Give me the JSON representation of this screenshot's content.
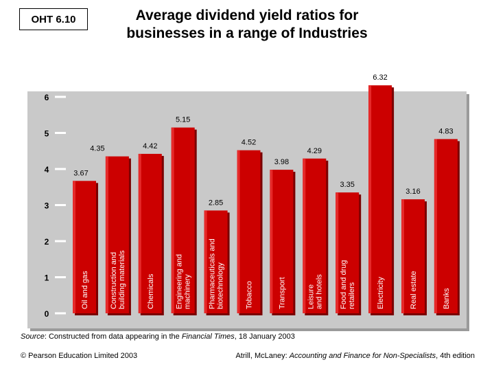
{
  "header": {
    "badge": "OHT 6.10",
    "title_line1": "Average dividend yield ratios for",
    "title_line2": "businesses in a range of Industries"
  },
  "chart_data": {
    "type": "bar",
    "title": "Average dividend yield ratios for businesses in a range of Industries",
    "xlabel": "",
    "ylabel": "",
    "ylim": [
      0,
      6.5
    ],
    "yticks": [
      0,
      1,
      2,
      3,
      4,
      5,
      6
    ],
    "grid": false,
    "categories": [
      [
        "Oil and gas"
      ],
      [
        "Construction and",
        "building materials"
      ],
      [
        "Chemicals"
      ],
      [
        "Engineering and",
        "machinery"
      ],
      [
        "Pharmaceuticals and",
        "biotechnology"
      ],
      [
        "Tobacco"
      ],
      [
        "Transport"
      ],
      [
        "Leisure",
        "and hotels"
      ],
      [
        "Food and drug",
        "retailers"
      ],
      [
        "Electricity"
      ],
      [
        "Real estate"
      ],
      [
        "Banks"
      ]
    ],
    "values": [
      3.67,
      4.35,
      4.42,
      5.15,
      2.85,
      4.52,
      3.98,
      4.29,
      3.35,
      6.32,
      3.16,
      4.83
    ],
    "value_labels": [
      "3.67",
      "4.35",
      "4.42",
      "5.15",
      "2.85",
      "4.52",
      "3.98",
      "4.29",
      "3.35",
      "6.32",
      "3.16",
      "4.83"
    ],
    "colors": {
      "panel": "#c9c9c9",
      "bar": "#cc0000",
      "bar_shadow": "#7a0000",
      "bar_highlight": "#e62a2a",
      "tick_line": "#ffffff"
    }
  },
  "footer": {
    "source_prefix": "Source",
    "source_mid": ": Constructed from data appearing in the ",
    "source_italic": "Financial Times",
    "source_suffix": ", 18 January 2003",
    "copyright": "© Pearson Education Limited 2003",
    "citation_prefix": "Atrill, McLaney: ",
    "citation_italic": "Accounting and Finance for Non-Specialists",
    "citation_suffix": ", 4th edition"
  }
}
